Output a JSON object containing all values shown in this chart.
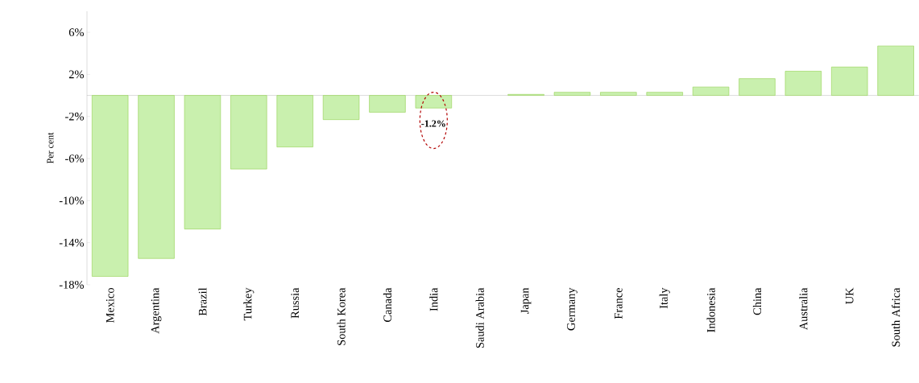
{
  "chart_data": {
    "type": "bar",
    "ylabel": "Per cent",
    "categories": [
      "Mexico",
      "Argentina",
      "Brazil",
      "Turkey",
      "Russia",
      "South Korea",
      "Canada",
      "India",
      "Saudi Arabia",
      "Japan",
      "Germany",
      "France",
      "Italy",
      "Indonesia",
      "China",
      "Australia",
      "UK",
      "South Africa"
    ],
    "values": [
      -17.2,
      -15.5,
      -12.7,
      -7.0,
      -4.9,
      -2.3,
      -1.6,
      -1.2,
      null,
      0.1,
      0.3,
      0.3,
      0.3,
      0.8,
      1.6,
      2.3,
      2.7,
      4.7
    ],
    "color": "#c9f0ae",
    "ylim": [
      -18,
      8
    ],
    "yticks": [
      {
        "value": -18,
        "label": "-18%"
      },
      {
        "value": -14,
        "label": "-14%"
      },
      {
        "value": -10,
        "label": "-10%"
      },
      {
        "value": -6,
        "label": "-6%"
      },
      {
        "value": -2,
        "label": "-2%"
      },
      {
        "value": 2,
        "label": "2%"
      },
      {
        "value": 6,
        "label": "6%"
      }
    ],
    "annotations": [
      {
        "text": "-1.2%",
        "x": "India",
        "y": -1.2
      }
    ]
  }
}
